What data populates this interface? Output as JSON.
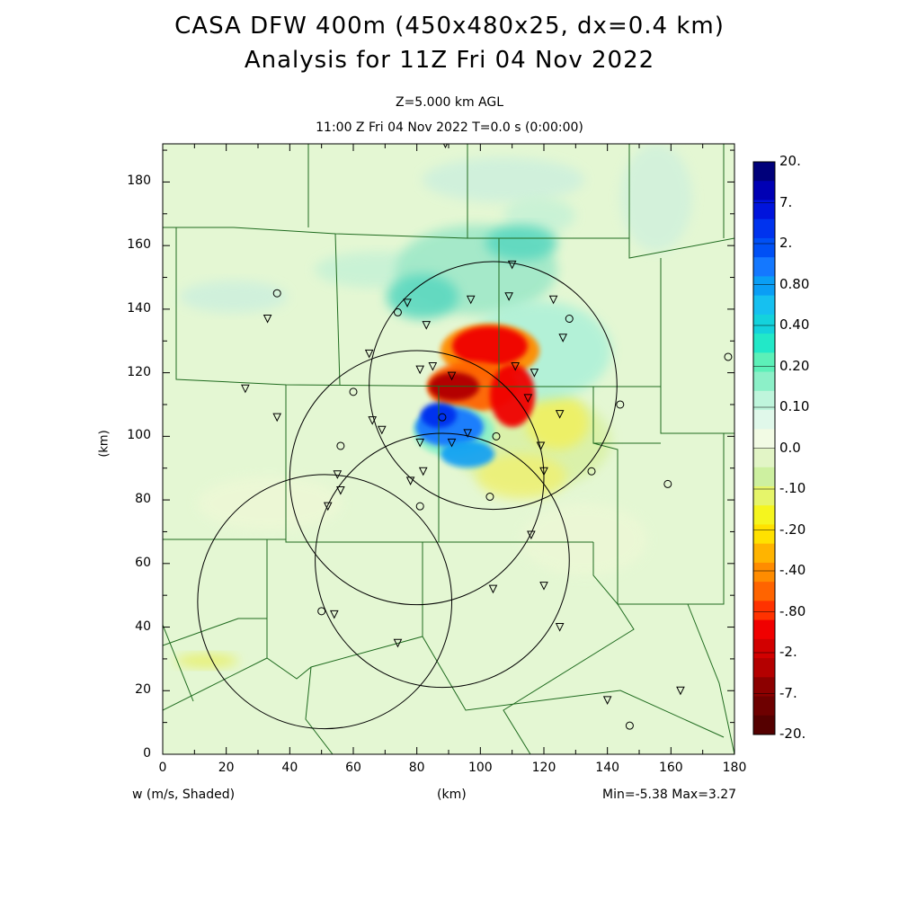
{
  "title": {
    "line1": "CASA DFW 400m (450x480x25, dx=0.4 km)",
    "line2": "Analysis for 11Z Fri 04 Nov 2022"
  },
  "subtitle": {
    "level": "Z=5.000 km AGL",
    "time": "11:00 Z Fri 04 Nov 2022    T=0.0 s (0:00:00)"
  },
  "axes": {
    "x_label": "(km)",
    "y_label": "(km)",
    "x_ticks": [
      "0",
      "20",
      "40",
      "60",
      "80",
      "100",
      "120",
      "140",
      "160",
      "180"
    ],
    "y_ticks": [
      "0",
      "20",
      "40",
      "60",
      "80",
      "100",
      "120",
      "140",
      "160",
      "180"
    ],
    "x_range": [
      0,
      180
    ],
    "y_range": [
      0,
      192
    ]
  },
  "footer": {
    "field": "w (m/s, Shaded)",
    "units": "(km)",
    "minmax": "Min=-5.38 Max=3.27"
  },
  "colorbar": {
    "labels": [
      "20.",
      "7.",
      "2.",
      "0.80",
      "0.40",
      "0.20",
      "0.10",
      "0.0",
      "-.10",
      "-.20",
      "-.40",
      "-.80",
      "-2.",
      "-7.",
      "-20."
    ],
    "colors": [
      "#00007a",
      "#0000b4",
      "#0014dc",
      "#0033ee",
      "#0050f5",
      "#1478ff",
      "#0a9ef5",
      "#16c0f0",
      "#14d2dc",
      "#22e8c8",
      "#5cf0b8",
      "#8cf0c8",
      "#bff5dc",
      "#e0f8ea",
      "#f2fbe4",
      "#e2f5c6",
      "#cdf0a0",
      "#e6f56a",
      "#f5f51e",
      "#ffe100",
      "#ffb400",
      "#ff8c00",
      "#ff6400",
      "#ff3200",
      "#f00000",
      "#d20000",
      "#b40000",
      "#8c0000",
      "#6e0000",
      "#550000"
    ]
  },
  "map": {
    "background": "#e4f7d3",
    "boundary_color": "#1f6b1f"
  },
  "radars": [
    {
      "cx": 104,
      "cy": 116,
      "r": 39
    },
    {
      "cx": 80,
      "cy": 87,
      "r": 40
    },
    {
      "cx": 88,
      "cy": 61,
      "r": 40
    },
    {
      "cx": 51,
      "cy": 48,
      "r": 40
    }
  ],
  "stations": {
    "triangles": [
      [
        89,
        192
      ],
      [
        110,
        154
      ],
      [
        97,
        143
      ],
      [
        109,
        144
      ],
      [
        123,
        143
      ],
      [
        77,
        142
      ],
      [
        33,
        137
      ],
      [
        83,
        135
      ],
      [
        126,
        131
      ],
      [
        65,
        126
      ],
      [
        85,
        122
      ],
      [
        111,
        122
      ],
      [
        117,
        120
      ],
      [
        81,
        121
      ],
      [
        26,
        115
      ],
      [
        91,
        119
      ],
      [
        115,
        112
      ],
      [
        125,
        107
      ],
      [
        36,
        106
      ],
      [
        66,
        105
      ],
      [
        69,
        102
      ],
      [
        96,
        101
      ],
      [
        91,
        98
      ],
      [
        81,
        98
      ],
      [
        119,
        97
      ],
      [
        82,
        89
      ],
      [
        55,
        88
      ],
      [
        120,
        89
      ],
      [
        78,
        86
      ],
      [
        56,
        83
      ],
      [
        52,
        78
      ],
      [
        116,
        69
      ],
      [
        104,
        52
      ],
      [
        120,
        53
      ],
      [
        125,
        40
      ],
      [
        54,
        44
      ],
      [
        74,
        35
      ],
      [
        140,
        17
      ],
      [
        163,
        20
      ]
    ],
    "circles": [
      [
        36,
        145
      ],
      [
        74,
        139
      ],
      [
        128,
        137
      ],
      [
        60,
        114
      ],
      [
        88,
        106
      ],
      [
        144,
        110
      ],
      [
        105,
        100
      ],
      [
        56,
        97
      ],
      [
        135,
        89
      ],
      [
        159,
        85
      ],
      [
        103,
        81
      ],
      [
        81,
        78
      ],
      [
        50,
        45
      ],
      [
        147,
        9
      ],
      [
        178,
        125
      ]
    ]
  }
}
